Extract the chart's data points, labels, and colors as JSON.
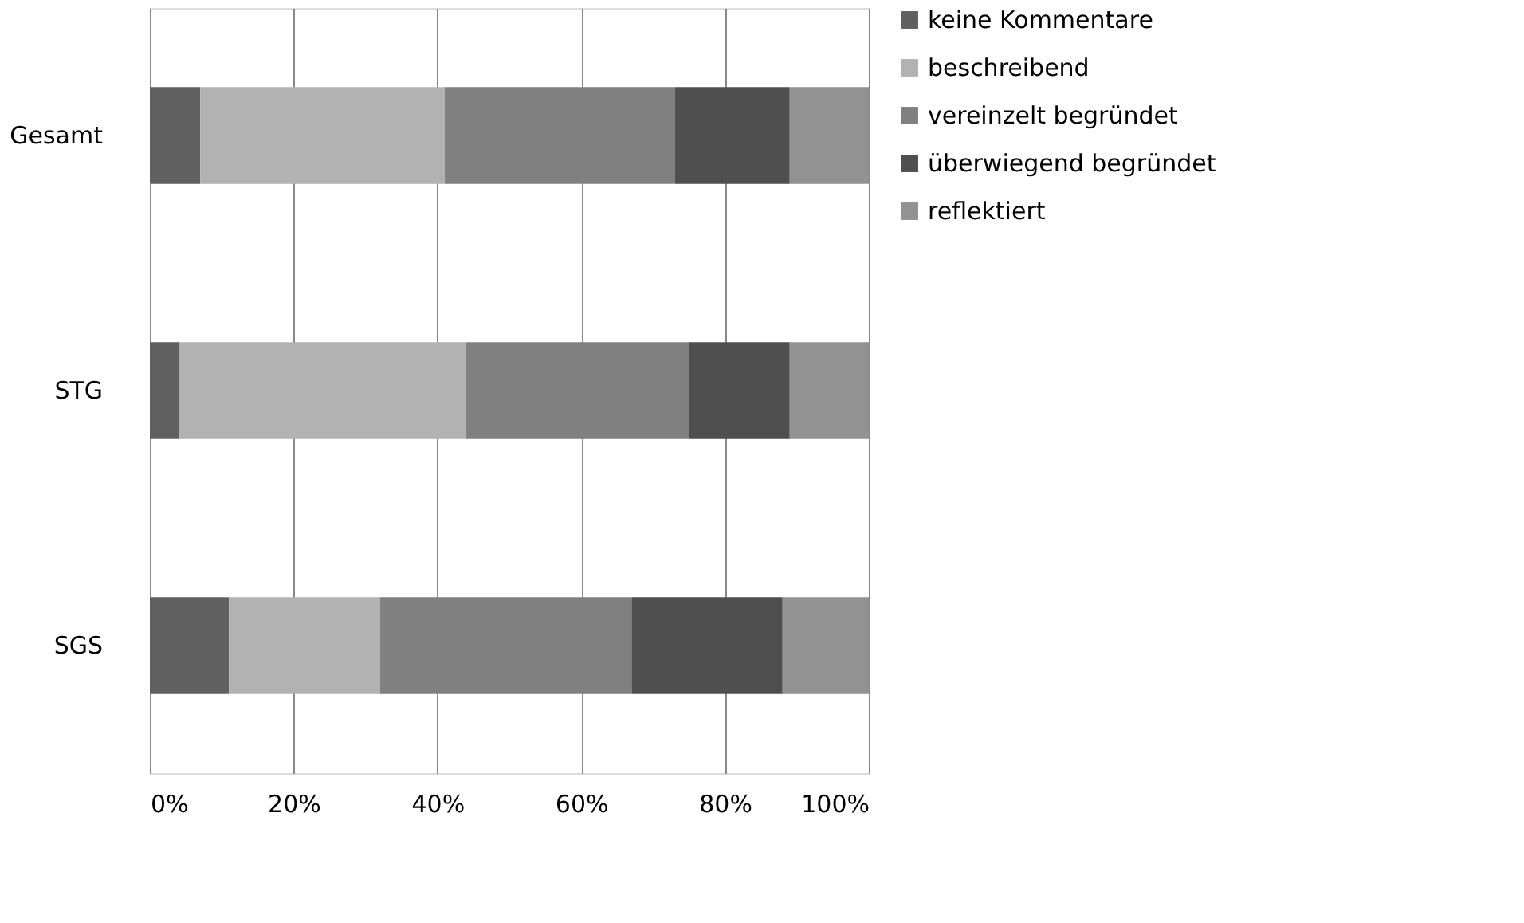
{
  "chart_data": {
    "type": "bar",
    "orientation": "horizontal",
    "stacked": true,
    "categories": [
      "Gesamt",
      "STG",
      "SGS"
    ],
    "series": [
      {
        "name": "keine Kommentare",
        "color": "#606060",
        "values": [
          7,
          4,
          11
        ]
      },
      {
        "name": "beschreibend",
        "color": "#b2b2b2",
        "values": [
          34,
          40,
          21
        ]
      },
      {
        "name": "vereinzelt begründet",
        "color": "#808080",
        "values": [
          32,
          31,
          35
        ]
      },
      {
        "name": "überwiegend begründet",
        "color": "#4f4f4f",
        "values": [
          16,
          14,
          21
        ]
      },
      {
        "name": "reflektiert",
        "color": "#929292",
        "values": [
          11,
          11,
          12
        ]
      }
    ],
    "xlim": [
      0,
      100
    ],
    "xticks": [
      {
        "value": 0,
        "label": "0%"
      },
      {
        "value": 20,
        "label": "20%"
      },
      {
        "value": 40,
        "label": "40%"
      },
      {
        "value": 60,
        "label": "60%"
      },
      {
        "value": 80,
        "label": "80%"
      },
      {
        "value": 100,
        "label": "100%"
      }
    ],
    "grid": "x",
    "legend": "right"
  }
}
